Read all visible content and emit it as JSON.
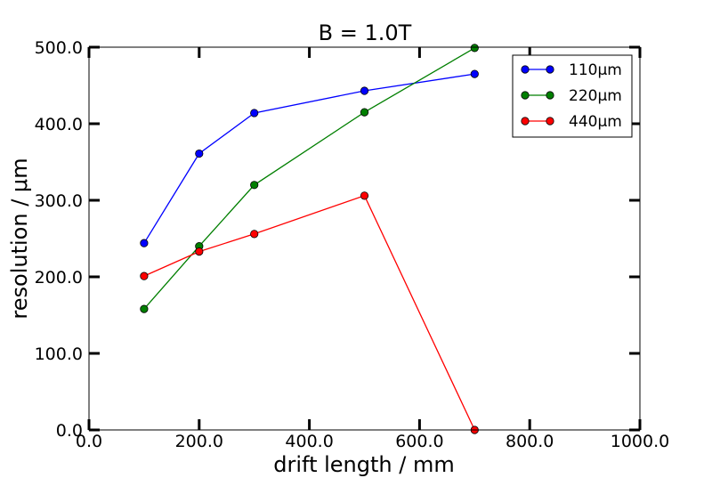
{
  "chart_data": {
    "type": "line",
    "title": "B = 1.0T",
    "xlabel": "drift length / mm",
    "ylabel": "resolution / μm",
    "xlim": [
      0,
      1000
    ],
    "ylim": [
      0,
      500
    ],
    "x_ticks": [
      "0.0",
      "200.0",
      "400.0",
      "600.0",
      "800.0",
      "1000.0"
    ],
    "y_ticks": [
      "0.0",
      "100.0",
      "200.0",
      "300.0",
      "400.0",
      "500.0"
    ],
    "grid": false,
    "legend_position": "top-right",
    "series": [
      {
        "name": "110μm",
        "color": "#0000ff",
        "x": [
          100,
          200,
          300,
          500,
          700
        ],
        "y": [
          244,
          361,
          414,
          443,
          465
        ]
      },
      {
        "name": "220μm",
        "color": "#007f00",
        "x": [
          100,
          200,
          300,
          500,
          700
        ],
        "y": [
          158,
          240,
          320,
          415,
          499
        ]
      },
      {
        "name": "440μm",
        "color": "#ff0000",
        "x": [
          100,
          200,
          300,
          500,
          700
        ],
        "y": [
          201,
          233,
          256,
          306,
          0
        ]
      }
    ]
  }
}
